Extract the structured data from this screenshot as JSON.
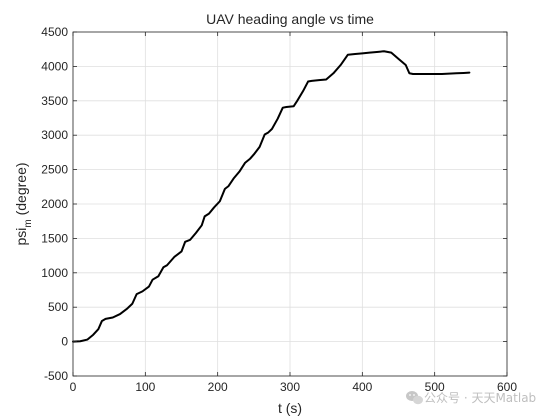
{
  "chart_data": {
    "type": "line",
    "title": "UAV heading angle vs time",
    "xlabel": "t (s)",
    "ylabel_main": "psi",
    "ylabel_sub": "m",
    "ylabel_rest": " (degree)",
    "xlim": [
      0,
      600
    ],
    "ylim": [
      -500,
      4500
    ],
    "xticks": [
      0,
      100,
      200,
      300,
      400,
      500,
      600
    ],
    "yticks": [
      -500,
      0,
      500,
      1000,
      1500,
      2000,
      2500,
      3000,
      3500,
      4000,
      4500
    ],
    "grid": true,
    "line_color": "#000000",
    "series": [
      {
        "x": [
          0,
          10,
          20,
          28,
          35,
          40,
          45,
          55,
          65,
          75,
          82,
          88,
          92,
          96,
          105,
          110,
          118,
          125,
          130,
          140,
          150,
          155,
          162,
          170,
          178,
          182,
          188,
          195,
          203,
          210,
          215,
          222,
          230,
          238,
          245,
          250,
          258,
          265,
          270,
          275,
          283,
          290,
          295,
          305,
          310,
          318,
          325,
          330,
          335,
          340,
          350,
          360,
          370,
          380,
          385,
          390,
          400,
          410,
          420,
          430,
          440,
          450,
          460,
          465,
          470,
          480,
          490,
          500,
          510,
          520,
          530,
          540,
          548
        ],
        "y": [
          0,
          5,
          30,
          100,
          180,
          300,
          330,
          350,
          400,
          480,
          550,
          690,
          710,
          730,
          800,
          900,
          950,
          1080,
          1110,
          1230,
          1310,
          1450,
          1480,
          1580,
          1690,
          1820,
          1860,
          1950,
          2040,
          2220,
          2260,
          2370,
          2470,
          2600,
          2660,
          2720,
          2830,
          3010,
          3040,
          3090,
          3240,
          3400,
          3410,
          3420,
          3500,
          3640,
          3780,
          3790,
          3795,
          3800,
          3810,
          3900,
          4020,
          4170,
          4175,
          4180,
          4190,
          4200,
          4210,
          4220,
          4200,
          4110,
          4020,
          3900,
          3890,
          3890,
          3890,
          3890,
          3890,
          3895,
          3900,
          3905,
          3910
        ]
      }
    ]
  },
  "watermark": {
    "icon": "wechat-icon",
    "text": "公众号 · 天天Matlab"
  }
}
